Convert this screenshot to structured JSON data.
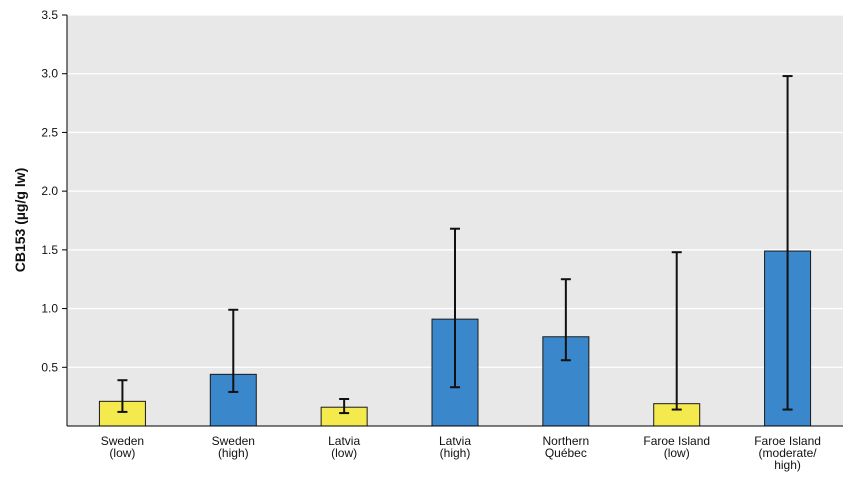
{
  "chart_data": {
    "type": "bar",
    "categories": [
      [
        "Sweden",
        "(low)"
      ],
      [
        "Sweden",
        "(high)"
      ],
      [
        "Latvia",
        "(low)"
      ],
      [
        "Latvia",
        "(high)"
      ],
      [
        "Northern",
        "Québec"
      ],
      [
        "Faroe Island",
        "(low)"
      ],
      [
        "Faroe Island",
        "(moderate/",
        "high)"
      ]
    ],
    "values": [
      0.21,
      0.44,
      0.16,
      0.91,
      0.76,
      0.19,
      1.49
    ],
    "error_low": [
      0.12,
      0.29,
      0.11,
      0.33,
      0.56,
      0.14,
      0.14
    ],
    "error_high": [
      0.39,
      0.99,
      0.23,
      1.68,
      1.25,
      1.48,
      2.98
    ],
    "bar_colors": [
      "#f5ea4d",
      "#3a87cb",
      "#f5ea4d",
      "#3a87cb",
      "#3a87cb",
      "#f5ea4d",
      "#3a87cb"
    ],
    "ylabel": "CB153 (µg/g lw)",
    "ylim": [
      0,
      3.5
    ],
    "yticks": [
      "0.5",
      "1.0",
      "1.5",
      "2.0",
      "2.5",
      "3.0",
      "3.5"
    ],
    "grid": true,
    "plot_background": "#e8e8e8",
    "gridline_color": "#ffffff"
  }
}
